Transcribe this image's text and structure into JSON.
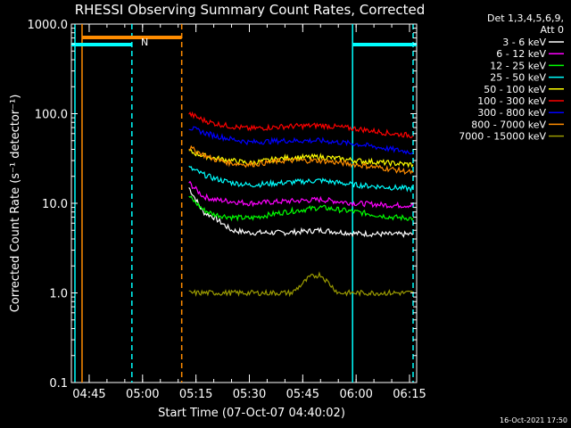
{
  "chart_data": {
    "type": "line",
    "title": "RHESSI Observing Summary Count Rates, Corrected",
    "xlabel": "Start Time (07-Oct-07 04:40:02)",
    "ylabel": "Corrected Count Rate (s⁻¹ detector⁻¹)",
    "yscale": "log",
    "ylim": [
      0.1,
      1000
    ],
    "yticks": [
      "0.1",
      "1.0",
      "10.0",
      "100.0",
      "1000.0"
    ],
    "xlim": [
      "04:40",
      "06:17"
    ],
    "xticks": [
      "04:45",
      "05:00",
      "05:15",
      "05:30",
      "05:45",
      "06:00",
      "06:15"
    ],
    "detectors_label": "Det 1,3,4,5,6,9,",
    "attenuator_label": "Att 0",
    "timestamp": "16-Oct-2021 17:50",
    "flag_label": "N",
    "legend_position": "top-right",
    "series": [
      {
        "name": "3 - 6 keV",
        "color": "#ffffff",
        "x": [
          "05:13",
          "05:17",
          "05:20",
          "05:25",
          "05:30",
          "05:40",
          "05:50",
          "06:00",
          "06:10",
          "06:16"
        ],
        "values": [
          15,
          8,
          7,
          5,
          4.7,
          4.7,
          5,
          4.6,
          4.5,
          4.5
        ]
      },
      {
        "name": "6 - 12 keV",
        "color": "#ff00ff",
        "x": [
          "05:13",
          "05:17",
          "05:20",
          "05:25",
          "05:30",
          "05:40",
          "05:50",
          "06:00",
          "06:10",
          "06:16"
        ],
        "values": [
          17,
          12,
          11,
          10.5,
          10,
          10.5,
          11,
          10,
          9.5,
          9.5
        ]
      },
      {
        "name": "12 - 25 keV",
        "color": "#00ff00",
        "x": [
          "05:13",
          "05:17",
          "05:20",
          "05:25",
          "05:30",
          "05:40",
          "05:50",
          "06:00",
          "06:10",
          "06:16"
        ],
        "values": [
          12,
          8.5,
          7.5,
          7,
          6.8,
          8,
          9,
          8,
          7,
          6.8
        ]
      },
      {
        "name": "25 - 50 keV",
        "color": "#00ffff",
        "x": [
          "05:13",
          "05:17",
          "05:20",
          "05:25",
          "05:30",
          "05:40",
          "05:50",
          "06:00",
          "06:10",
          "06:16"
        ],
        "values": [
          25,
          21,
          19,
          17,
          16,
          17,
          18,
          16,
          15,
          14.5
        ]
      },
      {
        "name": "50 - 100 keV",
        "color": "#ffff00",
        "x": [
          "05:13",
          "05:17",
          "05:20",
          "05:25",
          "05:30",
          "05:40",
          "05:50",
          "06:00",
          "06:10",
          "06:16"
        ],
        "values": [
          38,
          34,
          32,
          30,
          28,
          32,
          33,
          30,
          28,
          27
        ]
      },
      {
        "name": "100 - 300 keV",
        "color": "#ff0000",
        "x": [
          "05:13",
          "05:17",
          "05:20",
          "05:25",
          "05:30",
          "05:40",
          "05:50",
          "06:00",
          "06:10",
          "06:16"
        ],
        "values": [
          100,
          85,
          78,
          72,
          68,
          72,
          74,
          68,
          60,
          57
        ]
      },
      {
        "name": "300 - 800 keV",
        "color": "#0000ff",
        "x": [
          "05:13",
          "05:17",
          "05:20",
          "05:25",
          "05:30",
          "05:40",
          "05:50",
          "06:00",
          "06:10",
          "06:16"
        ],
        "values": [
          70,
          62,
          57,
          52,
          48,
          50,
          50,
          46,
          40,
          37
        ]
      },
      {
        "name": "800 - 7000 keV",
        "color": "#ff8c00",
        "x": [
          "05:13",
          "05:17",
          "05:20",
          "05:25",
          "05:30",
          "05:40",
          "05:50",
          "06:00",
          "06:10",
          "06:16"
        ],
        "values": [
          42,
          35,
          31,
          28,
          27,
          30,
          30,
          27,
          24,
          22
        ]
      },
      {
        "name": "7000 - 15000 keV",
        "color": "#9a9a00",
        "x": [
          "05:13",
          "05:20",
          "05:30",
          "05:42",
          "05:47",
          "05:50",
          "05:55",
          "06:00",
          "06:10",
          "06:16"
        ],
        "values": [
          1,
          1,
          1,
          1,
          1.5,
          1.6,
          1,
          1,
          1,
          1
        ]
      }
    ],
    "annotations": [
      {
        "type": "vline",
        "at": "04:41",
        "style": "solid",
        "color": "#00ffff"
      },
      {
        "type": "vline",
        "at": "04:43",
        "style": "solid",
        "color": "#ff8c00"
      },
      {
        "type": "vline",
        "at": "04:57",
        "style": "dashed",
        "color": "#00ffff"
      },
      {
        "type": "vline",
        "at": "05:11",
        "style": "dashed",
        "color": "#ff8c00"
      },
      {
        "type": "vline",
        "at": "05:59",
        "style": "solid",
        "color": "#00ffff"
      },
      {
        "type": "vline",
        "at": "06:16",
        "style": "dashed",
        "color": "#00ffff"
      },
      {
        "type": "hbar",
        "from": "04:43",
        "to": "05:11",
        "level": "upper",
        "color": "#ff8c00"
      },
      {
        "type": "hbar",
        "from": "04:40",
        "to": "04:57",
        "level": "lower",
        "color": "#00ffff"
      },
      {
        "type": "hbar",
        "from": "05:59",
        "to": "06:17",
        "level": "lower",
        "color": "#00ffff"
      }
    ]
  }
}
